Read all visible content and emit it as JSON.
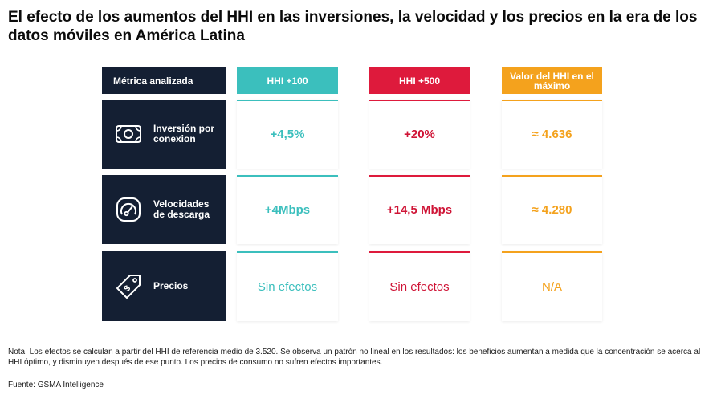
{
  "title": "El efecto de los aumentos del HHI en las inversiones, la velocidad y los precios en la era de los datos móviles en América Latina",
  "chart_data": {
    "type": "table",
    "header": {
      "metric": "Métrica analizada",
      "col1": "HHI +100",
      "col2": "HHI +500",
      "col3": "Valor del HHI en el máximo"
    },
    "rows": [
      {
        "icon": "money-icon",
        "label": "Inversión por\nconexion",
        "v1": "+4,5%",
        "v2": "+20%",
        "v3": "≈ 4.636"
      },
      {
        "icon": "speedometer-icon",
        "label": "Velocidades\nde descarga",
        "v1": "+4Mbps",
        "v2": "+14,5 Mbps",
        "v3": "≈ 4.280"
      },
      {
        "icon": "price-tag-icon",
        "label": "Precios",
        "v1": "Sin efectos",
        "v2": "Sin efectos",
        "v3": "N/A"
      }
    ],
    "colors": {
      "col1": "#3bbfbd",
      "col2": "#de1a3c",
      "col3": "#f4a21d",
      "label_bg": "#141f33"
    }
  },
  "note": "Nota: Los efectos se calculan a partir del HHI de referencia medio de 3.520. Se observa un patrón no lineal en los resultados: los beneficios aumentan a medida que la concentración se acerca al HHI óptimo, y disminuyen después de ese punto. Los precios de consumo no sufren efectos importantes.",
  "source": "Fuente: GSMA Intelligence"
}
